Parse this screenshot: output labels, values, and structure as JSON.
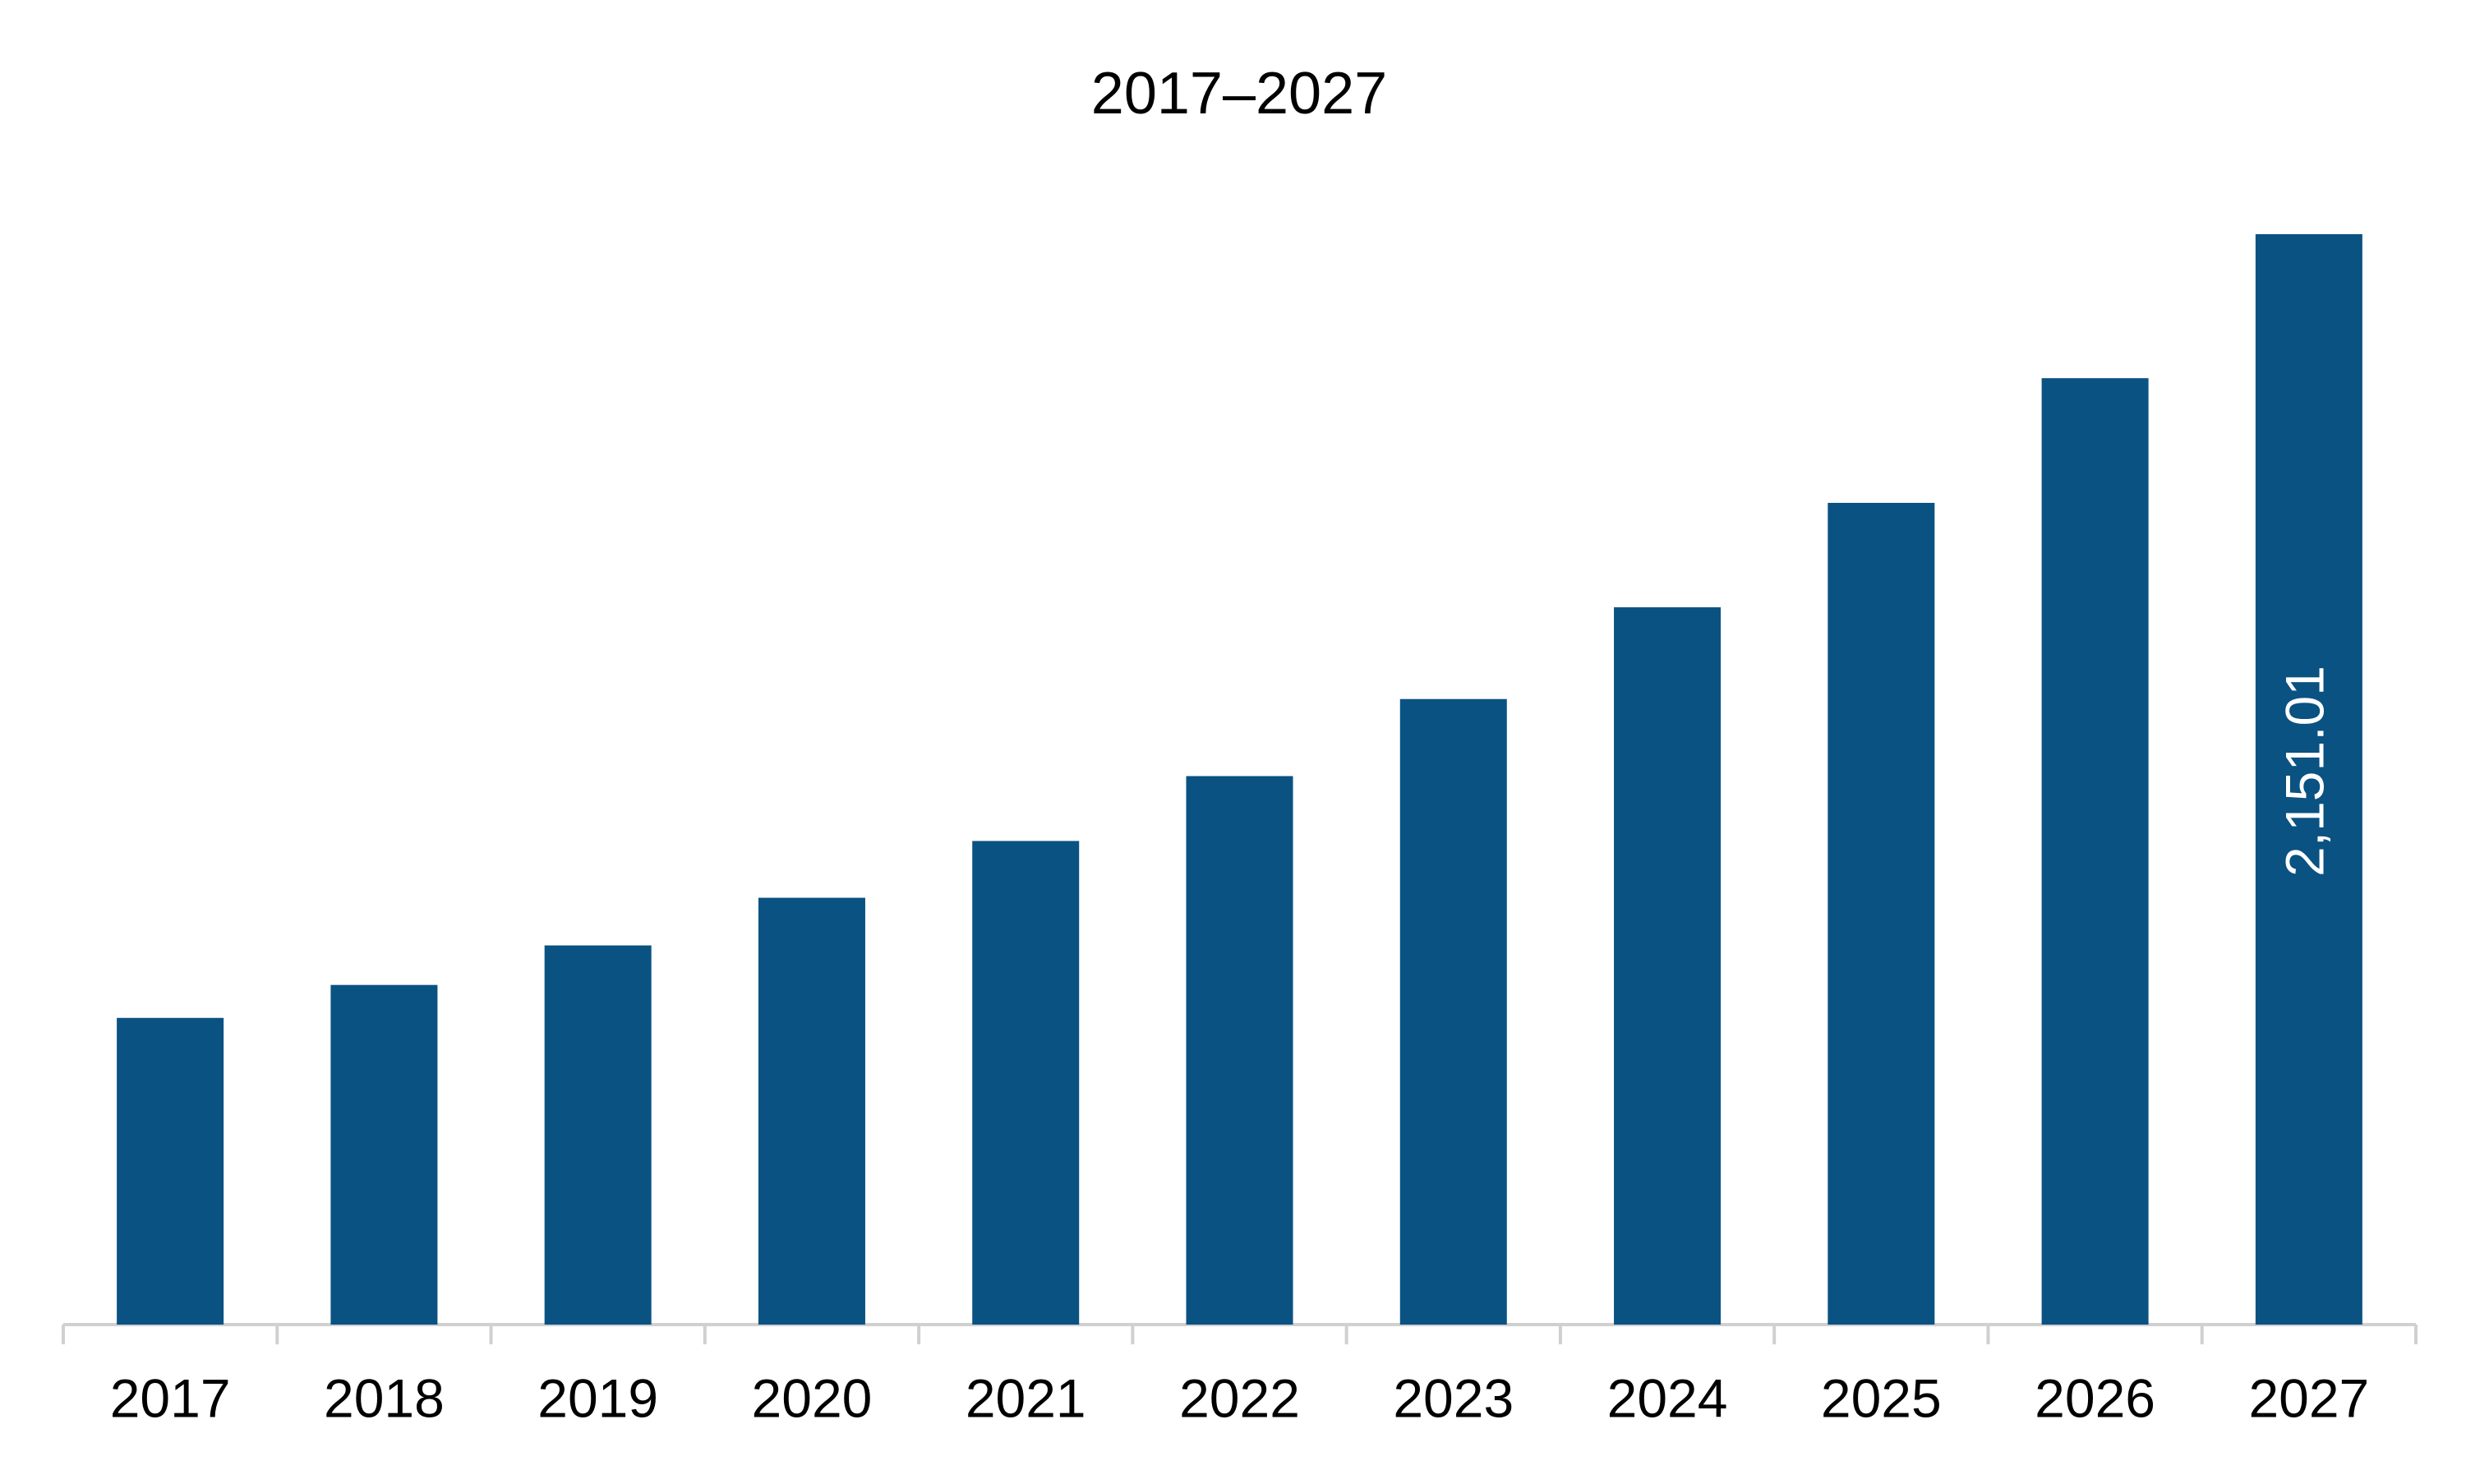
{
  "chart_data": {
    "type": "bar",
    "title": "2017–2027",
    "categories": [
      "2017",
      "2018",
      "2019",
      "2020",
      "2021",
      "2022",
      "2023",
      "2024",
      "2025",
      "2026",
      "2027"
    ],
    "values": [
      605,
      670,
      748,
      842,
      954,
      1082,
      1234,
      1415,
      1621,
      1867,
      2151.01
    ],
    "value_labels": [
      null,
      null,
      null,
      null,
      null,
      null,
      null,
      null,
      null,
      null,
      "2,151.01"
    ],
    "color": "#0a5282"
  }
}
